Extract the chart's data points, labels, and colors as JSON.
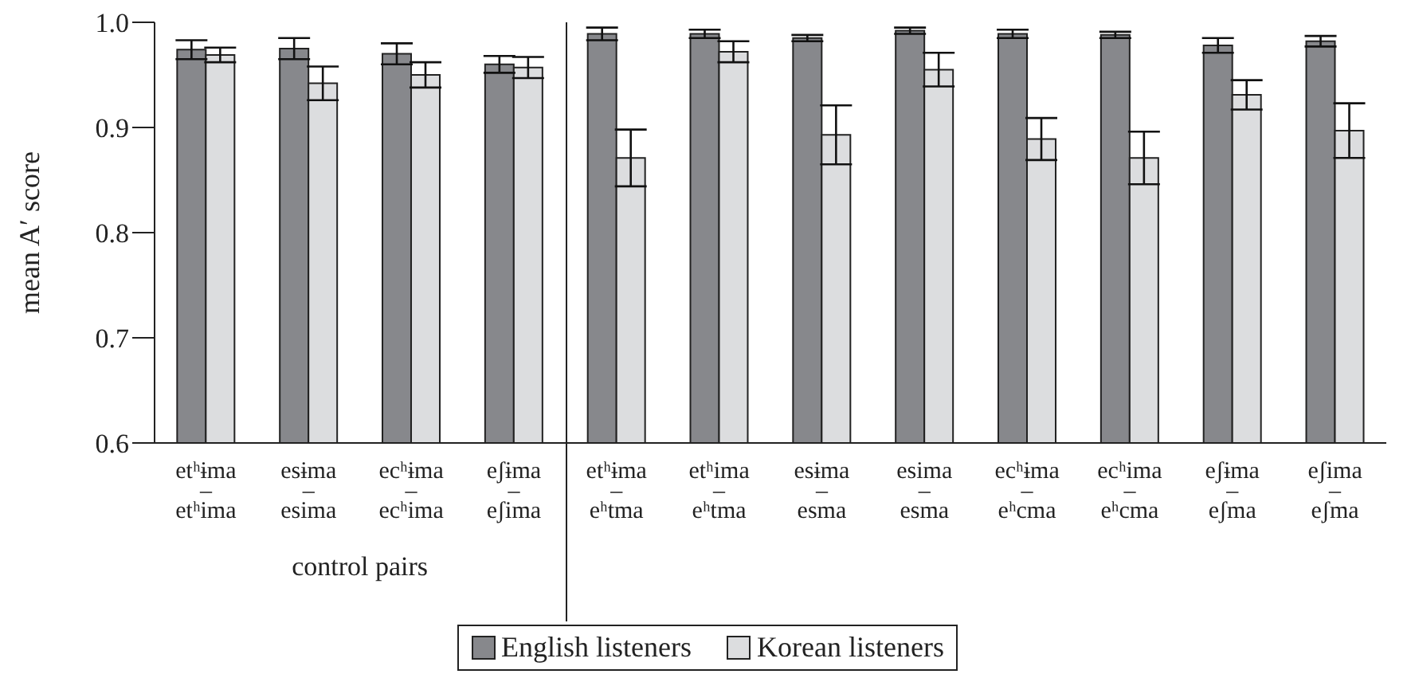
{
  "chart_data": {
    "type": "bar",
    "ylabel": "mean A′ score",
    "categories": [
      "etʰɨma\n–\netʰima",
      "esɨma\n–\nesima",
      "ecʰɨma\n–\necʰima",
      "eʃɨma\n–\neʃima",
      "etʰɨma\n–\neʰtma",
      "etʰima\n–\neʰtma",
      "esɨma\n–\nesma",
      "esima\n–\nesma",
      "ecʰɨma\n–\neʰcma",
      "ecʰima\n–\neʰcma",
      "eʃɨma\n–\neʃma",
      "eʃima\n–\neʃma"
    ],
    "series": [
      {
        "name": "English listeners",
        "color": "#87888c",
        "values": [
          0.974,
          0.975,
          0.97,
          0.96,
          0.989,
          0.989,
          0.985,
          0.992,
          0.989,
          0.988,
          0.978,
          0.982
        ],
        "errors": [
          0.009,
          0.01,
          0.01,
          0.008,
          0.006,
          0.004,
          0.003,
          0.003,
          0.004,
          0.003,
          0.007,
          0.005
        ]
      },
      {
        "name": "Korean listeners",
        "color": "#dcdddf",
        "values": [
          0.969,
          0.942,
          0.95,
          0.957,
          0.871,
          0.972,
          0.893,
          0.955,
          0.889,
          0.871,
          0.931,
          0.897
        ],
        "errors": [
          0.007,
          0.016,
          0.012,
          0.01,
          0.027,
          0.01,
          0.028,
          0.016,
          0.02,
          0.025,
          0.014,
          0.026
        ]
      }
    ],
    "ylim": [
      0.6,
      1.0
    ],
    "yticks": [
      0.6,
      0.7,
      0.8,
      0.9,
      {
        "value": 1.0,
        "label": "1.0"
      }
    ],
    "annotations": [
      "control pairs"
    ],
    "grid": false,
    "legend": "bottom"
  }
}
